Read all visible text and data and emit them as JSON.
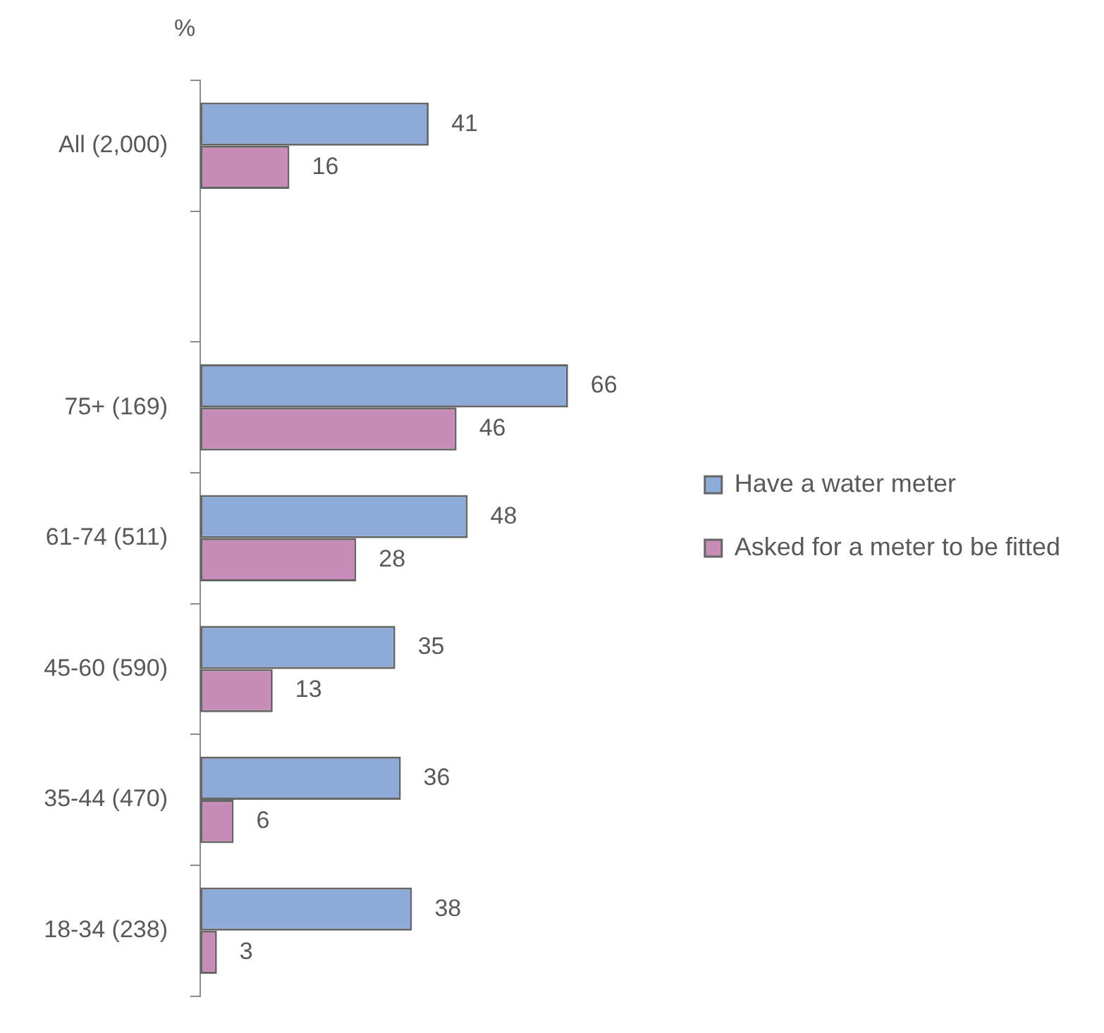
{
  "chart_data": {
    "type": "bar",
    "orientation": "horizontal",
    "xlabel": "%",
    "categories": [
      "All (2,000)",
      null,
      "75+ (169)",
      "61-74 (511)",
      "45-60 (590)",
      "35-44 (470)",
      "18-34 (238)"
    ],
    "series": [
      {
        "name": "Have a water meter",
        "color": "#8eaad6",
        "values": [
          41,
          null,
          66,
          48,
          35,
          36,
          38
        ]
      },
      {
        "name": "Asked for a meter to be fitted",
        "color": "#c78cb8",
        "values": [
          16,
          null,
          46,
          28,
          13,
          6,
          3
        ]
      }
    ],
    "data_labels": true,
    "legend": "right",
    "tick_labels": "y"
  }
}
